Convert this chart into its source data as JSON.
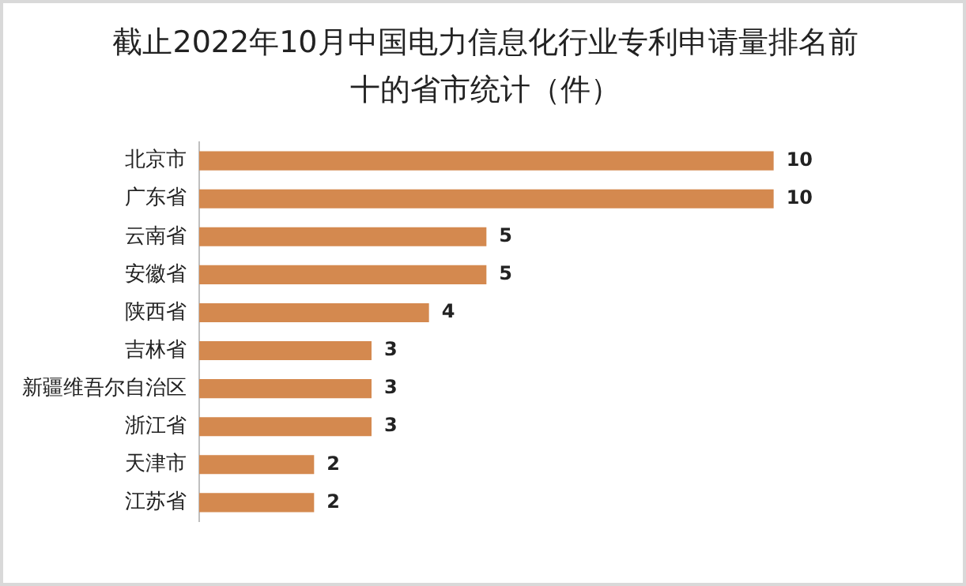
{
  "chart_data": {
    "type": "bar",
    "orientation": "horizontal",
    "title": "截止2022年10月中国电力信息化行业专利申请量排名前十的省市统计（件）",
    "categories": [
      "北京市",
      "广东省",
      "云南省",
      "安徽省",
      "陕西省",
      "吉林省",
      "新疆维吾尔自治区",
      "浙江省",
      "天津市",
      "江苏省"
    ],
    "values": [
      10,
      10,
      5,
      5,
      4,
      3,
      3,
      3,
      2,
      2
    ],
    "color": "#d4894f",
    "data_labels": true,
    "grid": false,
    "legend": false
  }
}
